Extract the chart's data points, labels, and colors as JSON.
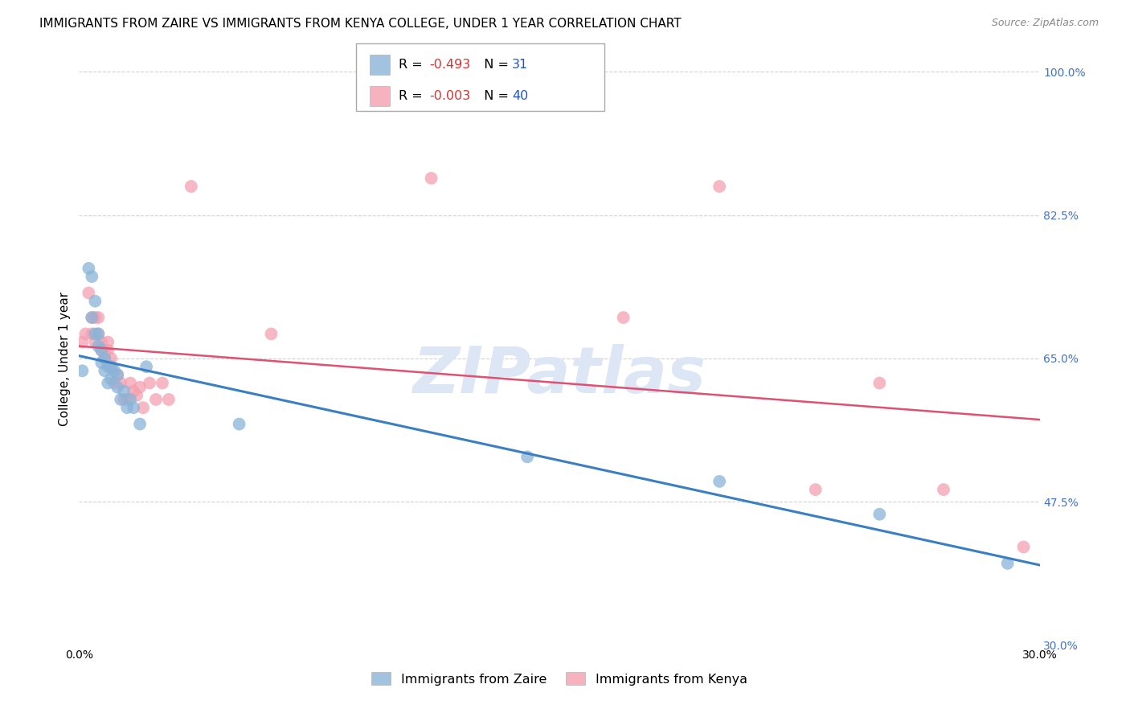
{
  "title": "IMMIGRANTS FROM ZAIRE VS IMMIGRANTS FROM KENYA COLLEGE, UNDER 1 YEAR CORRELATION CHART",
  "source": "Source: ZipAtlas.com",
  "ylabel": "College, Under 1 year",
  "xlim": [
    0.0,
    0.3
  ],
  "ylim": [
    0.3,
    1.0
  ],
  "ytick_vals": [
    0.3,
    0.475,
    0.65,
    0.825,
    1.0
  ],
  "right_ytick_labels": [
    "30.0%",
    "47.5%",
    "65.0%",
    "82.5%",
    "100.0%"
  ],
  "zaire_R": -0.493,
  "zaire_N": 31,
  "kenya_R": -0.003,
  "kenya_N": 40,
  "zaire_color": "#8ab4d8",
  "kenya_color": "#f4a0b0",
  "zaire_line_color": "#3a7fc1",
  "kenya_line_color": "#e05070",
  "background_color": "#ffffff",
  "grid_color": "#d0d0d0",
  "zaire_x": [
    0.001,
    0.003,
    0.004,
    0.004,
    0.005,
    0.005,
    0.006,
    0.006,
    0.007,
    0.007,
    0.008,
    0.008,
    0.009,
    0.009,
    0.01,
    0.01,
    0.011,
    0.012,
    0.012,
    0.013,
    0.014,
    0.015,
    0.016,
    0.017,
    0.019,
    0.021,
    0.05,
    0.14,
    0.2,
    0.25,
    0.29
  ],
  "zaire_y": [
    0.635,
    0.76,
    0.75,
    0.7,
    0.68,
    0.72,
    0.68,
    0.665,
    0.66,
    0.645,
    0.65,
    0.635,
    0.64,
    0.62,
    0.64,
    0.625,
    0.635,
    0.615,
    0.63,
    0.6,
    0.61,
    0.59,
    0.6,
    0.59,
    0.57,
    0.64,
    0.57,
    0.53,
    0.5,
    0.46,
    0.4
  ],
  "kenya_x": [
    0.001,
    0.002,
    0.003,
    0.004,
    0.004,
    0.005,
    0.005,
    0.006,
    0.006,
    0.007,
    0.007,
    0.008,
    0.008,
    0.009,
    0.009,
    0.01,
    0.01,
    0.011,
    0.012,
    0.013,
    0.014,
    0.015,
    0.016,
    0.017,
    0.018,
    0.019,
    0.02,
    0.022,
    0.024,
    0.026,
    0.028,
    0.035,
    0.06,
    0.11,
    0.17,
    0.2,
    0.23,
    0.25,
    0.27,
    0.295
  ],
  "kenya_y": [
    0.67,
    0.68,
    0.73,
    0.68,
    0.7,
    0.67,
    0.7,
    0.68,
    0.7,
    0.66,
    0.67,
    0.65,
    0.66,
    0.66,
    0.67,
    0.64,
    0.65,
    0.62,
    0.63,
    0.62,
    0.6,
    0.6,
    0.62,
    0.61,
    0.605,
    0.615,
    0.59,
    0.62,
    0.6,
    0.62,
    0.6,
    0.86,
    0.68,
    0.87,
    0.7,
    0.86,
    0.49,
    0.62,
    0.49,
    0.42
  ],
  "title_fontsize": 11,
  "axis_label_fontsize": 11,
  "tick_fontsize": 10,
  "right_tick_color": "#4472c4",
  "watermark_color": "#dce6f5",
  "watermark_fontsize": 58
}
